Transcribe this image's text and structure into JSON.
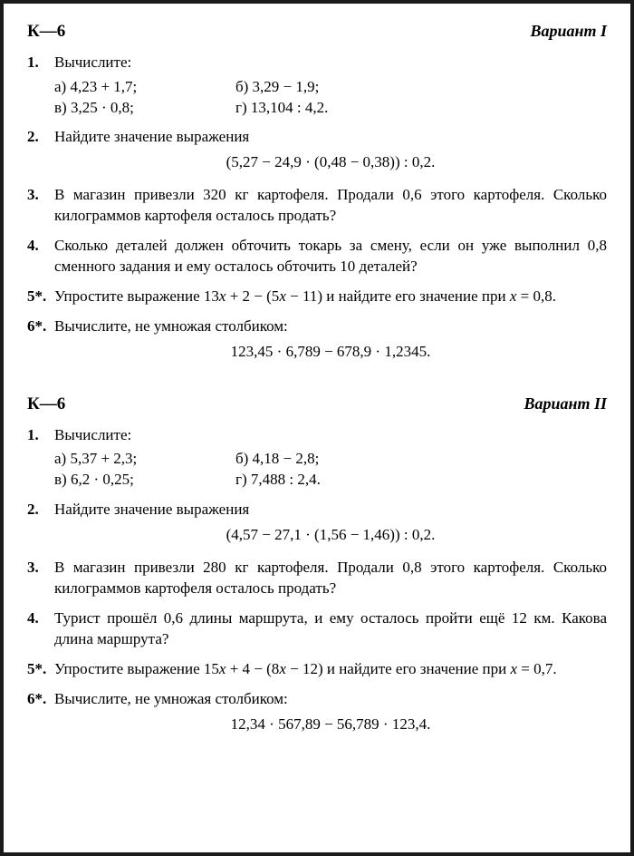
{
  "variants": [
    {
      "k_label": "К—6",
      "variant_label": "Вариант I",
      "problems": [
        {
          "num": "1.",
          "intro": "Вычислите:",
          "subparts": [
            [
              "а)  4,23 + 1,7;",
              "б)  3,29 − 1,9;"
            ],
            [
              "в)  3,25 · 0,8;",
              "г)  13,104 : 4,2."
            ]
          ]
        },
        {
          "num": "2.",
          "intro": "Найдите значение выражения",
          "centered": "(5,27 − 24,9 · (0,48 − 0,38)) : 0,2."
        },
        {
          "num": "3.",
          "text": "В магазин привезли 320 кг картофеля. Продали 0,6 этого картофеля. Сколько килограммов картофеля осталось продать?"
        },
        {
          "num": "4.",
          "text": "Сколько деталей должен обточить токарь за смену, если он уже выполнил 0,8 сменного задания и ему осталось обточить 10 деталей?"
        },
        {
          "num": "5*.",
          "html": "Упростите выражение 13<span class=\"italic-var\">x</span> + 2 − (5<span class=\"italic-var\">x</span> − 11) и найдите его значение при <span class=\"italic-var\">x</span> = 0,8."
        },
        {
          "num": "6*.",
          "intro": "Вычислите, не умножая столбиком:",
          "centered": "123,45 · 6,789 − 678,9 · 1,2345."
        }
      ]
    },
    {
      "k_label": "К—6",
      "variant_label": "Вариант II",
      "problems": [
        {
          "num": "1.",
          "intro": "Вычислите:",
          "subparts": [
            [
              "а)  5,37 + 2,3;",
              "б)  4,18 − 2,8;"
            ],
            [
              "в)  6,2 · 0,25;",
              "г)  7,488 : 2,4."
            ]
          ]
        },
        {
          "num": "2.",
          "intro": "Найдите значение выражения",
          "centered": "(4,57 − 27,1 · (1,56 − 1,46)) : 0,2."
        },
        {
          "num": "3.",
          "text": "В магазин привезли 280 кг картофеля. Продали 0,8 этого картофеля. Сколько килограммов картофеля осталось продать?"
        },
        {
          "num": "4.",
          "text": "Турист прошёл 0,6 длины маршрута, и ему осталось пройти ещё 12 км. Какова длина маршрута?"
        },
        {
          "num": "5*.",
          "html": "Упростите выражение 15<span class=\"italic-var\">x</span> + 4 − (8<span class=\"italic-var\">x</span> − 12) и найдите его значение при <span class=\"italic-var\">x</span> = 0,7."
        },
        {
          "num": "6*.",
          "intro": "Вычислите, не умножая столбиком:",
          "centered": "12,34 · 567,89 − 56,789 · 123,4."
        }
      ]
    }
  ]
}
